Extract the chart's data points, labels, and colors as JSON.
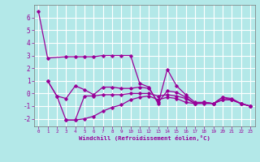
{
  "xlabel": "Windchill (Refroidissement éolien,°C)",
  "xlim": [
    -0.5,
    23.5
  ],
  "ylim": [
    -2.6,
    7.0
  ],
  "yticks": [
    -2,
    -1,
    0,
    1,
    2,
    3,
    4,
    5,
    6
  ],
  "xticks": [
    0,
    1,
    2,
    3,
    4,
    5,
    6,
    7,
    8,
    9,
    10,
    11,
    12,
    13,
    14,
    15,
    16,
    17,
    18,
    19,
    20,
    21,
    22,
    23
  ],
  "line_color": "#990099",
  "bg_color": "#b3e8e8",
  "grid_color": "#ffffff",
  "line1_x": [
    0,
    1,
    3,
    4,
    5,
    6,
    7,
    8,
    9,
    10,
    11,
    12,
    13,
    14,
    15,
    16,
    17,
    18,
    19,
    20,
    21,
    22,
    23
  ],
  "line1_y": [
    6.5,
    2.8,
    2.9,
    2.9,
    2.9,
    2.9,
    3.0,
    3.0,
    3.0,
    3.0,
    0.8,
    0.5,
    -0.8,
    1.9,
    0.6,
    -0.1,
    -0.7,
    -0.7,
    -0.8,
    -0.5,
    -0.5,
    -0.8,
    -1.0
  ],
  "line2_x": [
    1,
    2,
    3,
    4,
    5,
    6,
    7,
    8,
    9,
    10,
    11,
    12,
    13,
    14,
    15,
    16,
    17,
    18,
    19,
    20,
    21,
    22,
    23
  ],
  "line2_y": [
    1.0,
    -0.2,
    -0.4,
    0.6,
    0.3,
    -0.1,
    0.5,
    0.5,
    0.4,
    0.4,
    0.5,
    0.4,
    -0.7,
    0.2,
    0.1,
    -0.3,
    -0.8,
    -0.7,
    -0.8,
    -0.3,
    -0.4,
    -0.8,
    -1.0
  ],
  "line3_x": [
    3,
    4,
    5,
    6,
    7,
    8,
    9,
    10,
    11,
    12,
    13,
    14,
    15,
    16,
    17,
    18,
    19,
    20,
    21,
    22,
    23
  ],
  "line3_y": [
    -2.1,
    -2.1,
    -0.2,
    -0.2,
    -0.1,
    -0.1,
    -0.1,
    -0.0,
    0.0,
    0.0,
    -0.2,
    -0.1,
    -0.2,
    -0.4,
    -0.8,
    -0.8,
    -0.8,
    -0.5,
    -0.5,
    -0.8,
    -1.0
  ],
  "line4_x": [
    1,
    2,
    3,
    4,
    5,
    6,
    7,
    8,
    9,
    10,
    11,
    12,
    13,
    14,
    15,
    16,
    17,
    18,
    19,
    20,
    21,
    22,
    23
  ],
  "line4_y": [
    1.0,
    -0.2,
    -2.1,
    -2.1,
    -2.0,
    -1.8,
    -1.4,
    -1.1,
    -0.9,
    -0.5,
    -0.3,
    -0.2,
    -0.5,
    -0.3,
    -0.4,
    -0.7,
    -0.8,
    -0.7,
    -0.8,
    -0.3,
    -0.5,
    -0.8,
    -1.0
  ]
}
